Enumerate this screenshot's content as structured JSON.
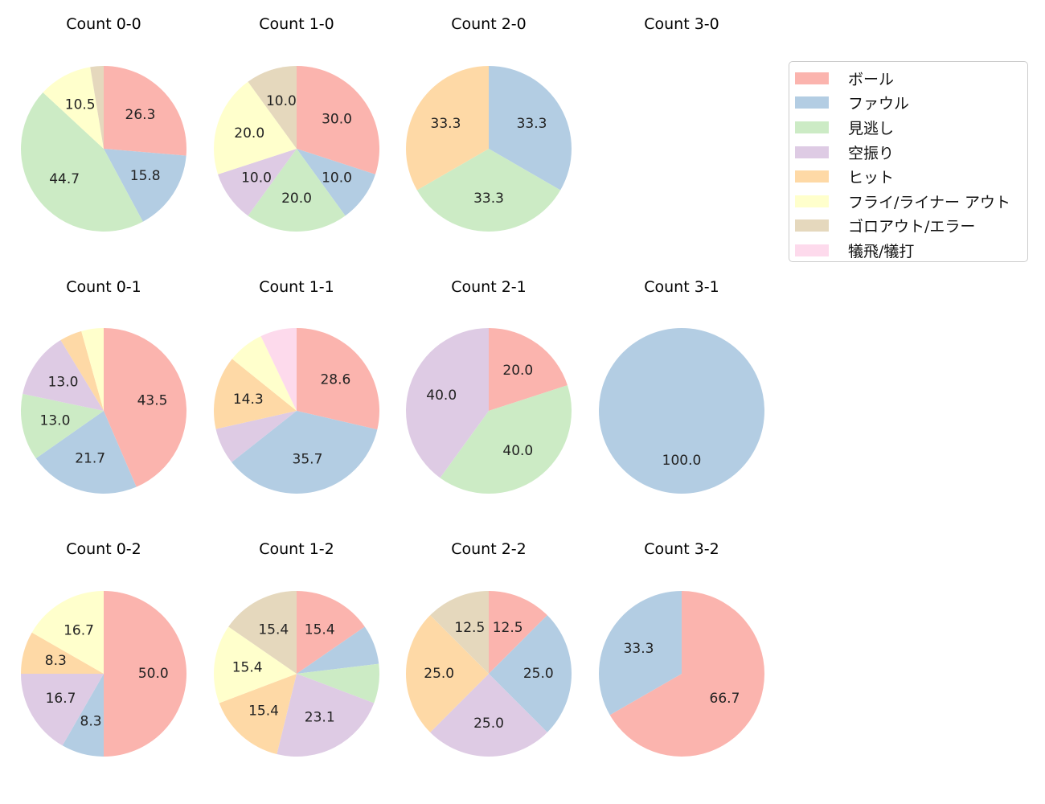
{
  "chart_data": {
    "type": "pie",
    "categories": [
      "ボール",
      "ファウル",
      "見逃し",
      "空振り",
      "ヒット",
      "フライ/ライナー アウト",
      "ゴロアウト/エラー",
      "犠飛/犠打"
    ],
    "colors": [
      "#fbb4ae",
      "#b3cde3",
      "#ccebc5",
      "#decbe4",
      "#fed9a6",
      "#ffffcc",
      "#e5d8bd",
      "#fddaec"
    ],
    "charts": [
      {
        "title": "Count 0-0",
        "values": [
          26.3,
          15.8,
          44.7,
          0,
          0,
          10.5,
          2.6,
          0
        ],
        "labels": [
          "26.3",
          "15.8",
          "44.7",
          "",
          "",
          "10.5",
          "",
          ""
        ]
      },
      {
        "title": "Count 1-0",
        "values": [
          30.0,
          10.0,
          20.0,
          10.0,
          0,
          20.0,
          10.0,
          0
        ],
        "labels": [
          "30.0",
          "10.0",
          "20.0",
          "10.0",
          "",
          "20.0",
          "10.0",
          ""
        ]
      },
      {
        "title": "Count 2-0",
        "values": [
          0,
          33.3,
          33.3,
          0,
          33.3,
          0,
          0,
          0
        ],
        "labels": [
          "",
          "33.3",
          "33.3",
          "",
          "33.3",
          "",
          "",
          ""
        ]
      },
      {
        "title": "Count 3-0",
        "values": [
          0,
          0,
          0,
          0,
          0,
          0,
          0,
          0
        ],
        "labels": [
          "",
          "",
          "",
          "",
          "",
          "",
          "",
          ""
        ]
      },
      {
        "title": "Count 0-1",
        "values": [
          43.5,
          21.7,
          13.0,
          13.0,
          4.35,
          4.35,
          0,
          0
        ],
        "labels": [
          "43.5",
          "21.7",
          "13.0",
          "13.0",
          "",
          "",
          "",
          ""
        ]
      },
      {
        "title": "Count 1-1",
        "values": [
          28.6,
          35.7,
          0,
          7.1,
          14.3,
          7.1,
          0,
          7.1
        ],
        "labels": [
          "28.6",
          "35.7",
          "",
          "",
          "14.3",
          "",
          "",
          ""
        ]
      },
      {
        "title": "Count 2-1",
        "values": [
          20.0,
          0,
          40.0,
          40.0,
          0,
          0,
          0,
          0
        ],
        "labels": [
          "20.0",
          "",
          "40.0",
          "40.0",
          "",
          "",
          "",
          ""
        ]
      },
      {
        "title": "Count 3-1",
        "values": [
          0,
          100.0,
          0,
          0,
          0,
          0,
          0,
          0
        ],
        "labels": [
          "",
          "100.0",
          "",
          "",
          "",
          "",
          "",
          ""
        ]
      },
      {
        "title": "Count 0-2",
        "values": [
          50.0,
          8.3,
          0,
          16.7,
          8.3,
          16.7,
          0,
          0
        ],
        "labels": [
          "50.0",
          "8.3",
          "",
          "16.7",
          "8.3",
          "16.7",
          "",
          ""
        ]
      },
      {
        "title": "Count 1-2",
        "values": [
          15.4,
          7.7,
          7.7,
          23.1,
          15.4,
          15.4,
          15.4,
          0
        ],
        "labels": [
          "15.4",
          "",
          "",
          "23.1",
          "15.4",
          "15.4",
          "15.4",
          ""
        ]
      },
      {
        "title": "Count 2-2",
        "values": [
          12.5,
          25.0,
          0,
          25.0,
          25.0,
          0,
          12.5,
          0
        ],
        "labels": [
          "12.5",
          "25.0",
          "",
          "25.0",
          "25.0",
          "",
          "12.5",
          ""
        ]
      },
      {
        "title": "Count 3-2",
        "values": [
          66.7,
          33.3,
          0,
          0,
          0,
          0,
          0,
          0
        ],
        "labels": [
          "66.7",
          "33.3",
          "",
          "",
          "",
          "",
          "",
          ""
        ]
      }
    ],
    "legend_position": "top-right"
  }
}
